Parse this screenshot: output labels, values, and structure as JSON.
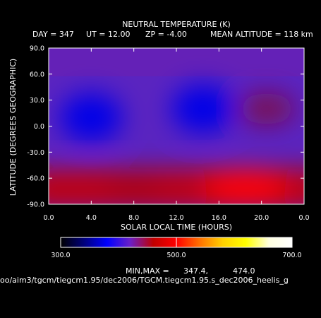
{
  "chart_data": {
    "type": "heatmap",
    "title": "NEUTRAL TEMPERATURE (K)",
    "subtitle": {
      "day": "DAY = 347",
      "ut": "UT = 12.00",
      "zp": "ZP =   -4.00",
      "mean_alt": "MEAN ALTITUDE = 118 km"
    },
    "xlabel": "SOLAR LOCAL TIME (HOURS)",
    "ylabel": "LATITUDE (DEGREES GEOGRAPHIC)",
    "xlim": [
      0,
      24
    ],
    "ylim": [
      -90,
      90
    ],
    "x_ticks": [
      "0.0",
      "4.0",
      "8.0",
      "12.0",
      "16.0",
      "20.0",
      "0.0"
    ],
    "y_ticks": [
      "90.0",
      "60.0",
      "30.0",
      "0.0",
      "-30.0",
      "-60.0",
      "-90.0"
    ],
    "colorbar": {
      "min": 300,
      "max": 700,
      "tick_labels": [
        "300.0",
        "500.0",
        "700.0"
      ],
      "stops": [
        "#000000",
        "#00007a",
        "#0000ff",
        "#6a1fc8",
        "#c00000",
        "#ff0000",
        "#ff7000",
        "#ffd000",
        "#ffff00",
        "#ffffe0",
        "#ffffff"
      ]
    },
    "minmax_label": "MIN,MAX =",
    "min": "347.4,",
    "max": "474.0",
    "features": [
      {
        "type": "cold",
        "slt": 4.0,
        "lat": 10,
        "value": 350
      },
      {
        "type": "cold",
        "slt": 14.5,
        "lat": 20,
        "value": 352
      },
      {
        "type": "warm",
        "slt": 20.5,
        "lat": 20,
        "value": 405
      },
      {
        "type": "hot",
        "slt": 18.5,
        "lat": -70,
        "value": 474
      },
      {
        "type": "warm",
        "slt": 8.0,
        "lat": -70,
        "value": 455
      }
    ],
    "footer_path": "oo/aim3/tgcm/tiegcm1.95/dec2006/TGCM.tiegcm1.95.s_dec2006_heelis_g"
  }
}
